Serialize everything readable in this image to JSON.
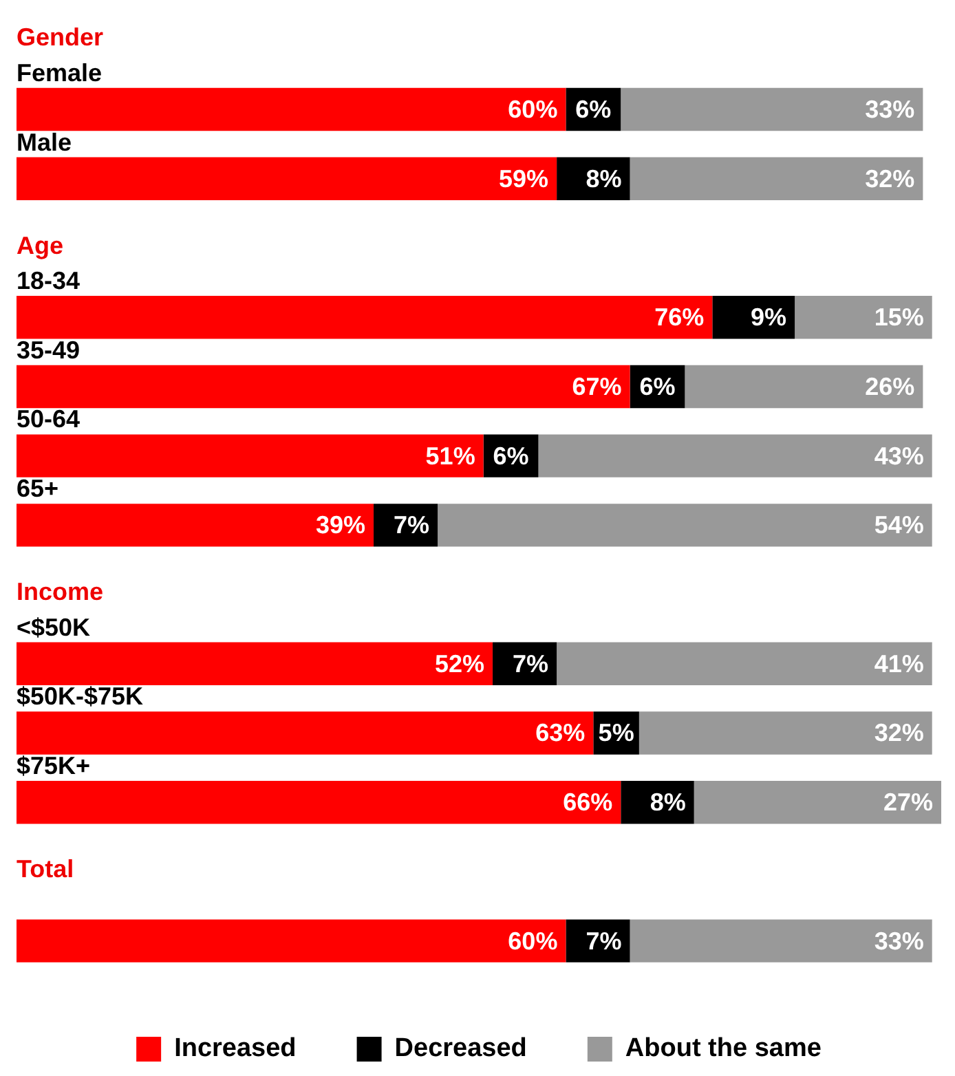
{
  "chart_data": {
    "type": "bar",
    "orientation": "horizontal",
    "stacked": true,
    "categories": [
      "Gender",
      "Female",
      "Male",
      "Age",
      "18-34",
      "35-49",
      "50-64",
      "65+",
      "Income",
      "<$50K",
      "$50K-$75K",
      "$75K+",
      "Total",
      null
    ],
    "series": [
      {
        "name": "Increased",
        "color": "#ff0000",
        "values": [
          null,
          60,
          59,
          null,
          76,
          67,
          51,
          39,
          null,
          52,
          63,
          66,
          null,
          60
        ],
        "value_labels": [
          null,
          "60%",
          "59%",
          null,
          "76%",
          "67%",
          "51%",
          "39%",
          null,
          "52%",
          "63%",
          "66%",
          null,
          "60%"
        ]
      },
      {
        "name": "Decreased",
        "color": "#000000",
        "values": [
          null,
          6,
          8,
          null,
          9,
          6,
          6,
          7,
          null,
          7,
          5,
          8,
          null,
          7
        ],
        "value_labels": [
          null,
          "6%",
          "8%",
          null,
          "9%",
          "6%",
          "6%",
          "7%",
          null,
          "7%",
          "5%",
          "8%",
          null,
          "7%"
        ]
      },
      {
        "name": "About the same",
        "color": "#999999",
        "values": [
          null,
          33,
          32,
          null,
          15,
          26,
          43,
          54,
          null,
          41,
          32,
          27,
          null,
          33
        ],
        "value_labels": [
          null,
          "33%",
          "32%",
          null,
          "15%",
          "26%",
          "43%",
          "54%",
          null,
          "41%",
          "32%",
          "27%",
          null,
          "33%"
        ]
      }
    ],
    "xlim": [
      0,
      101
    ],
    "legend": "bottom"
  }
}
